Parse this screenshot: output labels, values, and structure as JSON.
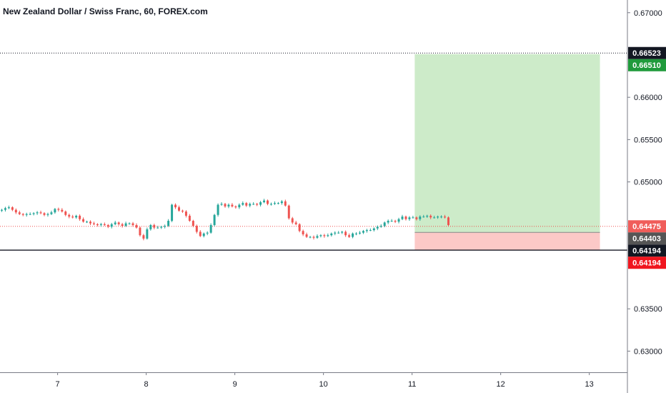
{
  "chart_data": {
    "type": "candlestick",
    "title": "New Zealand Dollar / Swiss Franc, 60, FOREX.com",
    "x_tick_labels": [
      "7",
      "8",
      "9",
      "10",
      "11",
      "12",
      "13"
    ],
    "x_ticks": [
      7,
      8,
      9,
      10,
      11,
      12,
      13
    ],
    "x_range": [
      6.35,
      13.43
    ],
    "y_tick_labels": [
      "0.67000",
      "0.66000",
      "0.65500",
      "0.65000",
      "0.63500",
      "0.63000"
    ],
    "y_ticks": [
      0.67,
      0.66,
      0.655,
      0.65,
      0.635,
      0.63
    ],
    "y_range": [
      0.6275,
      0.6715
    ],
    "grid": false,
    "colors": {
      "up": "#26a69a",
      "down": "#ef5350",
      "profit_zone": "#cdebc9",
      "loss_zone": "#fcc9c7",
      "target_tag": "#1f9a3b",
      "stop_tag": "#f0161f",
      "dark_tag": "#131722",
      "entry_tag": "#555555",
      "last_price_tag": "#f05d5a"
    },
    "position": {
      "entry": 0.64403,
      "target": 0.6651,
      "stop": 0.64194,
      "start_x": 11.03,
      "end_x": 13.12
    },
    "horizontal_lines": [
      {
        "price": 0.66523,
        "style": "dotted"
      },
      {
        "price": 0.64194,
        "style": "solid"
      }
    ],
    "last_price": 0.64475,
    "price_tags": [
      {
        "label": "0.66523",
        "price": 0.66523,
        "color": "dark"
      },
      {
        "label": "0.66510",
        "price": 0.6651,
        "color": "target"
      },
      {
        "label": "0.64475",
        "price": 0.64475,
        "color": "last"
      },
      {
        "label": "0.64403",
        "price": 0.64403,
        "color": "entry"
      },
      {
        "label": "0.64194",
        "price": 0.64194,
        "color": "dark"
      },
      {
        "label": "0.64194",
        "price": 0.64194,
        "color": "stop"
      }
    ],
    "candles": {
      "start_x": 6.37,
      "step": 0.04,
      "open": 0.6466,
      "closes": [
        0.6467,
        0.6469,
        0.647,
        0.6467,
        0.6464,
        0.6462,
        0.6461,
        0.6462,
        0.6462,
        0.6463,
        0.6464,
        0.6463,
        0.6461,
        0.6462,
        0.6464,
        0.6468,
        0.6467,
        0.6465,
        0.6461,
        0.6459,
        0.6458,
        0.646,
        0.6456,
        0.6453,
        0.6453,
        0.6451,
        0.645,
        0.6449,
        0.645,
        0.6449,
        0.6447,
        0.645,
        0.6452,
        0.645,
        0.6448,
        0.6451,
        0.6451,
        0.6449,
        0.6446,
        0.6437,
        0.6433,
        0.6444,
        0.6449,
        0.6446,
        0.6446,
        0.6447,
        0.6448,
        0.6454,
        0.6473,
        0.647,
        0.6466,
        0.6465,
        0.646,
        0.6454,
        0.6448,
        0.6441,
        0.6436,
        0.6439,
        0.644,
        0.6449,
        0.6461,
        0.6473,
        0.6474,
        0.6471,
        0.6473,
        0.6471,
        0.647,
        0.6473,
        0.6475,
        0.6472,
        0.6474,
        0.6474,
        0.6473,
        0.6476,
        0.6478,
        0.6474,
        0.6474,
        0.6475,
        0.6475,
        0.6477,
        0.6472,
        0.6457,
        0.6452,
        0.645,
        0.6442,
        0.6438,
        0.6435,
        0.6435,
        0.6434,
        0.6436,
        0.6437,
        0.6436,
        0.6437,
        0.6439,
        0.644,
        0.644,
        0.6441,
        0.6437,
        0.6435,
        0.6439,
        0.6439,
        0.644,
        0.6442,
        0.6443,
        0.6443,
        0.6445,
        0.6447,
        0.6448,
        0.6452,
        0.6454,
        0.6454,
        0.6453,
        0.6456,
        0.6459,
        0.6456,
        0.6458,
        0.6458,
        0.6456,
        0.6459,
        0.6459,
        0.646,
        0.6458,
        0.6458,
        0.6459,
        0.6459,
        0.6458,
        0.6449
      ]
    }
  }
}
